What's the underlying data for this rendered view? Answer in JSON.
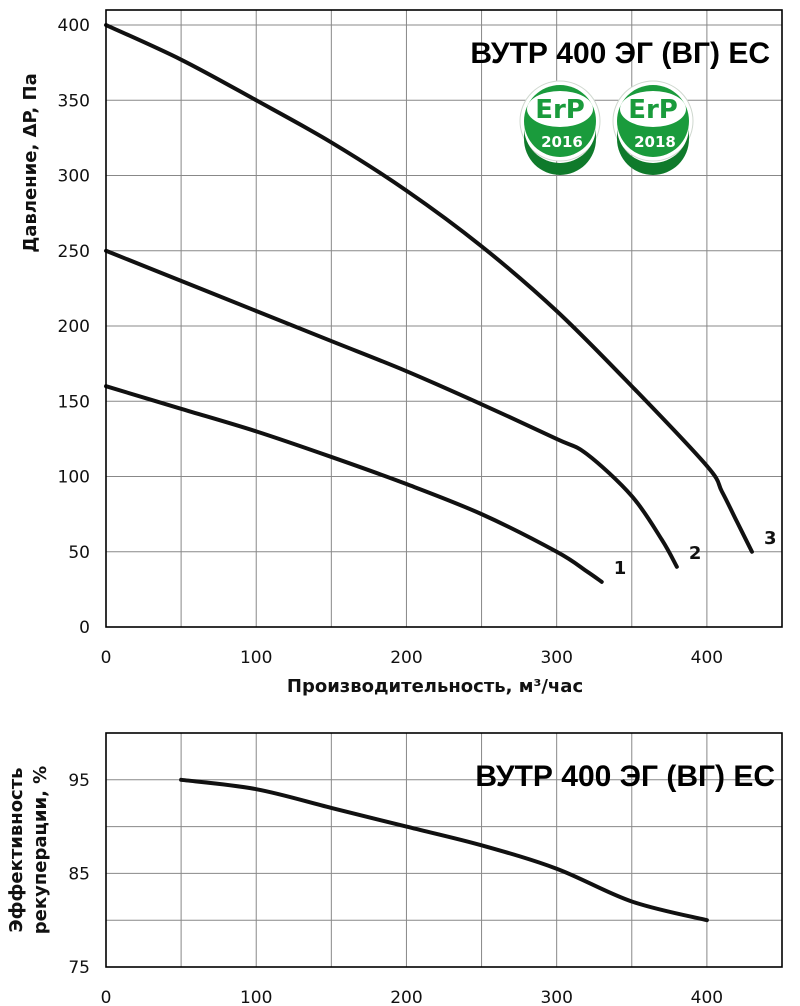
{
  "chart_data": [
    {
      "type": "line",
      "title": "ВУТР 400 ЭГ (ВГ) ЕС",
      "xlabel": "Производительность, м³/час",
      "ylabel": "Давление, ΔP, Па",
      "xlim": [
        0,
        450
      ],
      "ylim": [
        0,
        410
      ],
      "xticks": [
        0,
        100,
        200,
        300,
        400
      ],
      "yticks": [
        0,
        50,
        100,
        150,
        200,
        250,
        300,
        350,
        400
      ],
      "x_grid_step": 50,
      "y_grid_step": 50,
      "grid": true,
      "badges": [
        "ErP 2016",
        "ErP 2018"
      ],
      "badge_color": "#1a9b3c",
      "series": [
        {
          "name": "1",
          "x": [
            0,
            50,
            100,
            150,
            200,
            250,
            300,
            320,
            330
          ],
          "y": [
            160,
            145,
            130,
            113,
            95,
            75,
            50,
            37,
            30
          ]
        },
        {
          "name": "2",
          "x": [
            0,
            50,
            100,
            150,
            200,
            250,
            300,
            320,
            350,
            370,
            380
          ],
          "y": [
            250,
            230,
            210,
            190,
            170,
            148,
            125,
            115,
            87,
            58,
            40
          ]
        },
        {
          "name": "3",
          "x": [
            0,
            50,
            100,
            150,
            200,
            250,
            300,
            350,
            400,
            410,
            420,
            430
          ],
          "y": [
            400,
            377,
            350,
            322,
            290,
            253,
            210,
            160,
            107,
            90,
            70,
            50
          ]
        }
      ]
    },
    {
      "type": "line",
      "title": "ВУТР 400 ЭГ (ВГ) ЕС",
      "xlabel": "",
      "ylabel": "Эффективность рекуперации, %",
      "xlim": [
        0,
        450
      ],
      "ylim": [
        75,
        100
      ],
      "xticks": [
        0,
        100,
        200,
        300,
        400
      ],
      "yticks": [
        75,
        85,
        95
      ],
      "x_grid_step": 50,
      "y_grid_step": 5,
      "grid": true,
      "series": [
        {
          "name": "",
          "x": [
            50,
            100,
            150,
            200,
            250,
            300,
            350,
            400
          ],
          "y": [
            95,
            94,
            92,
            90,
            88,
            85.5,
            82,
            80
          ]
        }
      ]
    }
  ]
}
